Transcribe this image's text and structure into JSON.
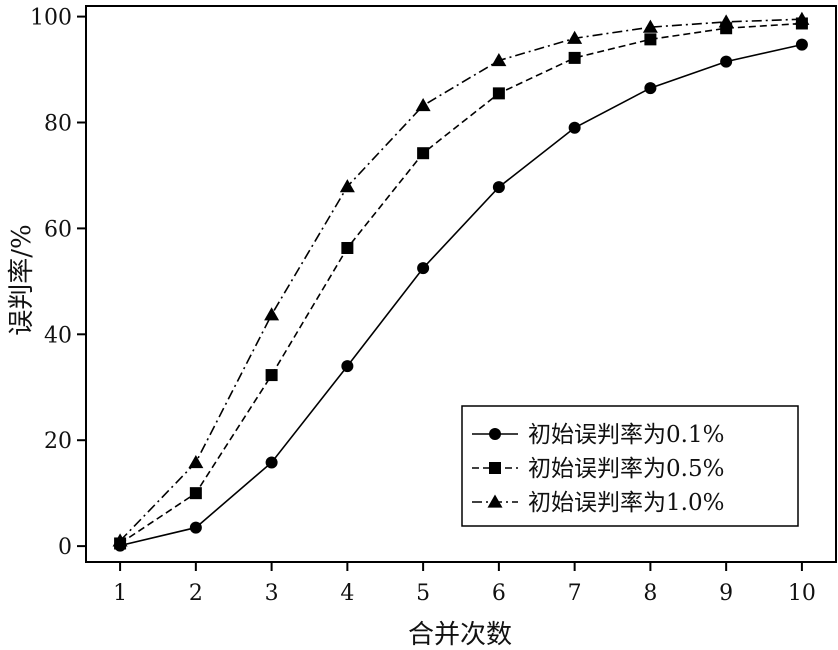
{
  "chart_data": {
    "type": "line",
    "title": "",
    "xlabel": "合并次数",
    "ylabel": "误判率/%",
    "x": [
      1,
      2,
      3,
      4,
      5,
      6,
      7,
      8,
      9,
      10
    ],
    "xlim": [
      0.55,
      10.45
    ],
    "ylim": [
      -3,
      102
    ],
    "xticks": [
      1,
      2,
      3,
      4,
      5,
      6,
      7,
      8,
      9,
      10
    ],
    "yticks": [
      0,
      20,
      40,
      60,
      80,
      100
    ],
    "grid": false,
    "legend_position": "bottom-right",
    "series": [
      {
        "name": "初始误判率为0.1%",
        "marker": "circle",
        "dash": "solid",
        "values": [
          0.1,
          3.5,
          15.8,
          34.0,
          52.5,
          67.8,
          79.0,
          86.5,
          91.5,
          94.7
        ]
      },
      {
        "name": "初始误判率为0.5%",
        "marker": "square",
        "dash": "dashed",
        "values": [
          0.5,
          10.0,
          32.3,
          56.3,
          74.2,
          85.5,
          92.2,
          95.7,
          97.8,
          98.7
        ]
      },
      {
        "name": "初始误判率为1.0%",
        "marker": "triangle",
        "dash": "dashdot",
        "values": [
          1.0,
          15.8,
          43.7,
          67.9,
          83.2,
          91.7,
          95.9,
          98.0,
          99.0,
          99.5
        ]
      }
    ],
    "colors": {
      "line": "#000000",
      "background": "#ffffff"
    }
  }
}
